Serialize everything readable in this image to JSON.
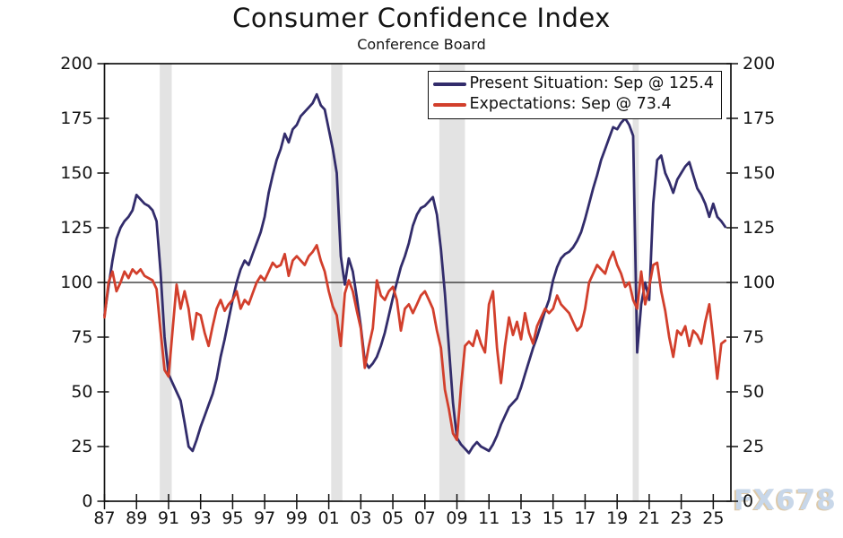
{
  "watermark": "FX678",
  "chart_data": {
    "type": "line",
    "title": "Consumer Confidence Index",
    "subtitle": "Conference Board",
    "xlabel": "",
    "ylabel": "",
    "ylim": [
      0,
      200
    ],
    "xlim": [
      1987,
      2026.1
    ],
    "y_ticks": [
      0,
      25,
      50,
      75,
      100,
      125,
      150,
      175,
      200
    ],
    "y_axis_both_sides": true,
    "x_tick_years": [
      1987,
      1989,
      1991,
      1993,
      1995,
      1997,
      1999,
      2001,
      2003,
      2005,
      2007,
      2009,
      2011,
      2013,
      2015,
      2017,
      2019,
      2021,
      2023,
      2025
    ],
    "x_tick_labels": [
      "87",
      "89",
      "91",
      "93",
      "95",
      "97",
      "99",
      "01",
      "03",
      "05",
      "07",
      "09",
      "11",
      "13",
      "15",
      "17",
      "19",
      "21",
      "23",
      "25"
    ],
    "grid": false,
    "reference_line_y": 100,
    "legend_position": "top-right",
    "band_color": "#e3e3e3",
    "recession_bands": [
      [
        1990.45,
        1991.2
      ],
      [
        2001.15,
        2001.85
      ],
      [
        2007.9,
        2009.5
      ],
      [
        2019.97,
        2020.35
      ]
    ],
    "x_unit": "year (quarterly samples, monthly data approximated)",
    "x": [
      1987.0,
      1987.25,
      1987.5,
      1987.75,
      1988.0,
      1988.25,
      1988.5,
      1988.75,
      1989.0,
      1989.25,
      1989.5,
      1989.75,
      1990.0,
      1990.25,
      1990.5,
      1990.75,
      1991.0,
      1991.25,
      1991.5,
      1991.75,
      1992.0,
      1992.25,
      1992.5,
      1992.75,
      1993.0,
      1993.25,
      1993.5,
      1993.75,
      1994.0,
      1994.25,
      1994.5,
      1994.75,
      1995.0,
      1995.25,
      1995.5,
      1995.75,
      1996.0,
      1996.25,
      1996.5,
      1996.75,
      1997.0,
      1997.25,
      1997.5,
      1997.75,
      1998.0,
      1998.25,
      1998.5,
      1998.75,
      1999.0,
      1999.25,
      1999.5,
      1999.75,
      2000.0,
      2000.25,
      2000.5,
      2000.75,
      2001.0,
      2001.25,
      2001.5,
      2001.75,
      2002.0,
      2002.25,
      2002.5,
      2002.75,
      2003.0,
      2003.25,
      2003.5,
      2003.75,
      2004.0,
      2004.25,
      2004.5,
      2004.75,
      2005.0,
      2005.25,
      2005.5,
      2005.75,
      2006.0,
      2006.25,
      2006.5,
      2006.75,
      2007.0,
      2007.25,
      2007.5,
      2007.75,
      2008.0,
      2008.25,
      2008.5,
      2008.75,
      2009.0,
      2009.25,
      2009.5,
      2009.75,
      2010.0,
      2010.25,
      2010.5,
      2010.75,
      2011.0,
      2011.25,
      2011.5,
      2011.75,
      2012.0,
      2012.25,
      2012.5,
      2012.75,
      2013.0,
      2013.25,
      2013.5,
      2013.75,
      2014.0,
      2014.25,
      2014.5,
      2014.75,
      2015.0,
      2015.25,
      2015.5,
      2015.75,
      2016.0,
      2016.25,
      2016.5,
      2016.75,
      2017.0,
      2017.25,
      2017.5,
      2017.75,
      2018.0,
      2018.25,
      2018.5,
      2018.75,
      2019.0,
      2019.25,
      2019.5,
      2019.75,
      2020.0,
      2020.25,
      2020.5,
      2020.75,
      2021.0,
      2021.25,
      2021.5,
      2021.75,
      2022.0,
      2022.25,
      2022.5,
      2022.75,
      2023.0,
      2023.25,
      2023.5,
      2023.75,
      2024.0,
      2024.25,
      2024.5,
      2024.75,
      2025.0,
      2025.25,
      2025.5,
      2025.75
    ],
    "series": [
      {
        "name": "Present Situation",
        "legend_label": "Present Situation: Sep @ 125.4",
        "latest_month": "Sep",
        "latest_value": 125.4,
        "color": "#322c6b",
        "values": [
          85,
          98,
          110,
          120,
          125,
          128,
          130,
          133,
          140,
          138,
          136,
          135,
          133,
          128,
          105,
          75,
          58,
          54,
          50,
          46,
          36,
          25,
          23,
          28,
          34,
          39,
          44,
          49,
          56,
          66,
          74,
          83,
          92,
          100,
          106,
          110,
          108,
          113,
          118,
          123,
          130,
          141,
          149,
          156,
          161,
          168,
          164,
          170,
          172,
          176,
          178,
          180,
          182,
          186,
          181,
          179,
          170,
          161,
          150,
          112,
          99,
          111,
          105,
          93,
          80,
          64,
          61,
          63,
          66,
          71,
          77,
          85,
          93,
          100,
          107,
          112,
          118,
          126,
          131,
          134,
          135,
          137,
          139,
          131,
          115,
          95,
          70,
          45,
          29,
          26,
          24,
          22,
          25,
          27,
          25,
          24,
          23,
          26,
          30,
          35,
          39,
          43,
          45,
          47,
          52,
          58,
          64,
          70,
          75,
          81,
          87,
          92,
          101,
          107,
          111,
          113,
          114,
          116,
          119,
          123,
          129,
          136,
          143,
          149,
          156,
          161,
          166,
          171,
          170,
          173,
          175,
          172,
          167,
          68,
          90,
          100,
          92,
          136,
          156,
          158,
          150,
          146,
          141,
          147,
          150,
          153,
          155,
          149,
          143,
          140,
          136,
          130,
          136,
          130,
          128,
          125.4
        ]
      },
      {
        "name": "Expectations",
        "legend_label": "Expectations: Sep @ 73.4",
        "latest_month": "Sep",
        "latest_value": 73.4,
        "color": "#d23f2c",
        "values": [
          84,
          100,
          105,
          96,
          100,
          105,
          102,
          106,
          104,
          106,
          103,
          102,
          101,
          97,
          78,
          60,
          57,
          78,
          99,
          88,
          96,
          88,
          74,
          86,
          85,
          77,
          71,
          80,
          88,
          92,
          87,
          90,
          92,
          96,
          88,
          92,
          90,
          95,
          100,
          103,
          101,
          105,
          109,
          107,
          108,
          113,
          103,
          110,
          112,
          110,
          108,
          112,
          114,
          117,
          110,
          105,
          96,
          89,
          85,
          71,
          95,
          101,
          96,
          87,
          79,
          61,
          71,
          79,
          101,
          94,
          92,
          96,
          98,
          92,
          78,
          88,
          90,
          86,
          90,
          94,
          96,
          92,
          88,
          78,
          70,
          51,
          42,
          31,
          28,
          52,
          71,
          73,
          71,
          78,
          72,
          68,
          90,
          96,
          70,
          54,
          71,
          84,
          76,
          82,
          74,
          86,
          77,
          72,
          80,
          84,
          88,
          86,
          88,
          94,
          90,
          88,
          86,
          82,
          78,
          80,
          88,
          100,
          104,
          108,
          106,
          104,
          110,
          114,
          108,
          104,
          98,
          100,
          92,
          88,
          105,
          90,
          98,
          108,
          109,
          96,
          87,
          75,
          66,
          78,
          76,
          80,
          71,
          78,
          76,
          72,
          82,
          90,
          74,
          56,
          72,
          73.4
        ]
      }
    ]
  }
}
